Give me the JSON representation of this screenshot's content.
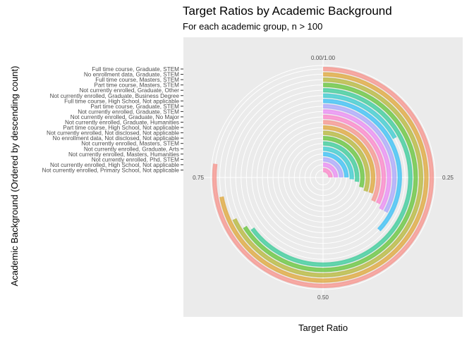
{
  "chart_data": {
    "type": "bar",
    "coord": "polar",
    "title": "Target Ratios by Academic Background",
    "subtitle": "For each academic group, n > 100",
    "xlabel": "Academic Background (Ordered by descending count)",
    "ylabel": "Target Ratio",
    "ylim": [
      0,
      1
    ],
    "angle_ticks": [
      "0.00/1.00",
      "0.25",
      "0.50",
      "0.75"
    ],
    "grid": true,
    "legend": "none",
    "categories": [
      "Full time course, Graduate, STEM",
      "No enrollment data, Graduate, STEM",
      "Full time course, Masters, STEM",
      "Part time course, Masters, STEM",
      "Not currently enrolled, Graduate, Other",
      "Not currently enrolled, Graduate, Business Degree",
      "Full time course, High School, Not applicable",
      "Part time course, Graduate, STEM",
      "Not currently enrolled, Graduate, STEM",
      "Not currently enrolled, Graduate, No Major",
      "Not currently enrolled, Graduate, Humanities",
      "Part time course, High School, Not applicable",
      "Not currently enrolled, Not disclosed, Not applicable",
      "No enrollment data, Not disclosed, Not applicable",
      "Not currently enrolled, Masters, STEM",
      "Not currently enrolled, Graduate, Arts",
      "Not currently enrolled, Masters, Humanities",
      "Not currently enrolled, Phd, STEM",
      "Not currently enrolled, High School, Not applicable",
      "Not currently enrolled, Primary School, Not applicable"
    ],
    "values": [
      0.77,
      0.72,
      0.68,
      0.66,
      0.65,
      0.17,
      0.37,
      0.33,
      0.33,
      0.32,
      0.32,
      0.3,
      0.3,
      0.29,
      0.27,
      0.26,
      0.25,
      0.25,
      0.25,
      0.25
    ],
    "colors": [
      "#F8766D",
      "#D89000",
      "#A3A500",
      "#39B600",
      "#00BF7D",
      "#00BFC4",
      "#00B0F6",
      "#9590FF",
      "#E76BF3",
      "#FF62BC",
      "#F8766D",
      "#D89000",
      "#A3A500",
      "#39B600",
      "#00BF7D",
      "#00BFC4",
      "#00B0F6",
      "#9590FF",
      "#E76BF3",
      "#FF62BC"
    ],
    "panel_color": "#EBEBEB",
    "grid_color": "#FFFFFF"
  }
}
